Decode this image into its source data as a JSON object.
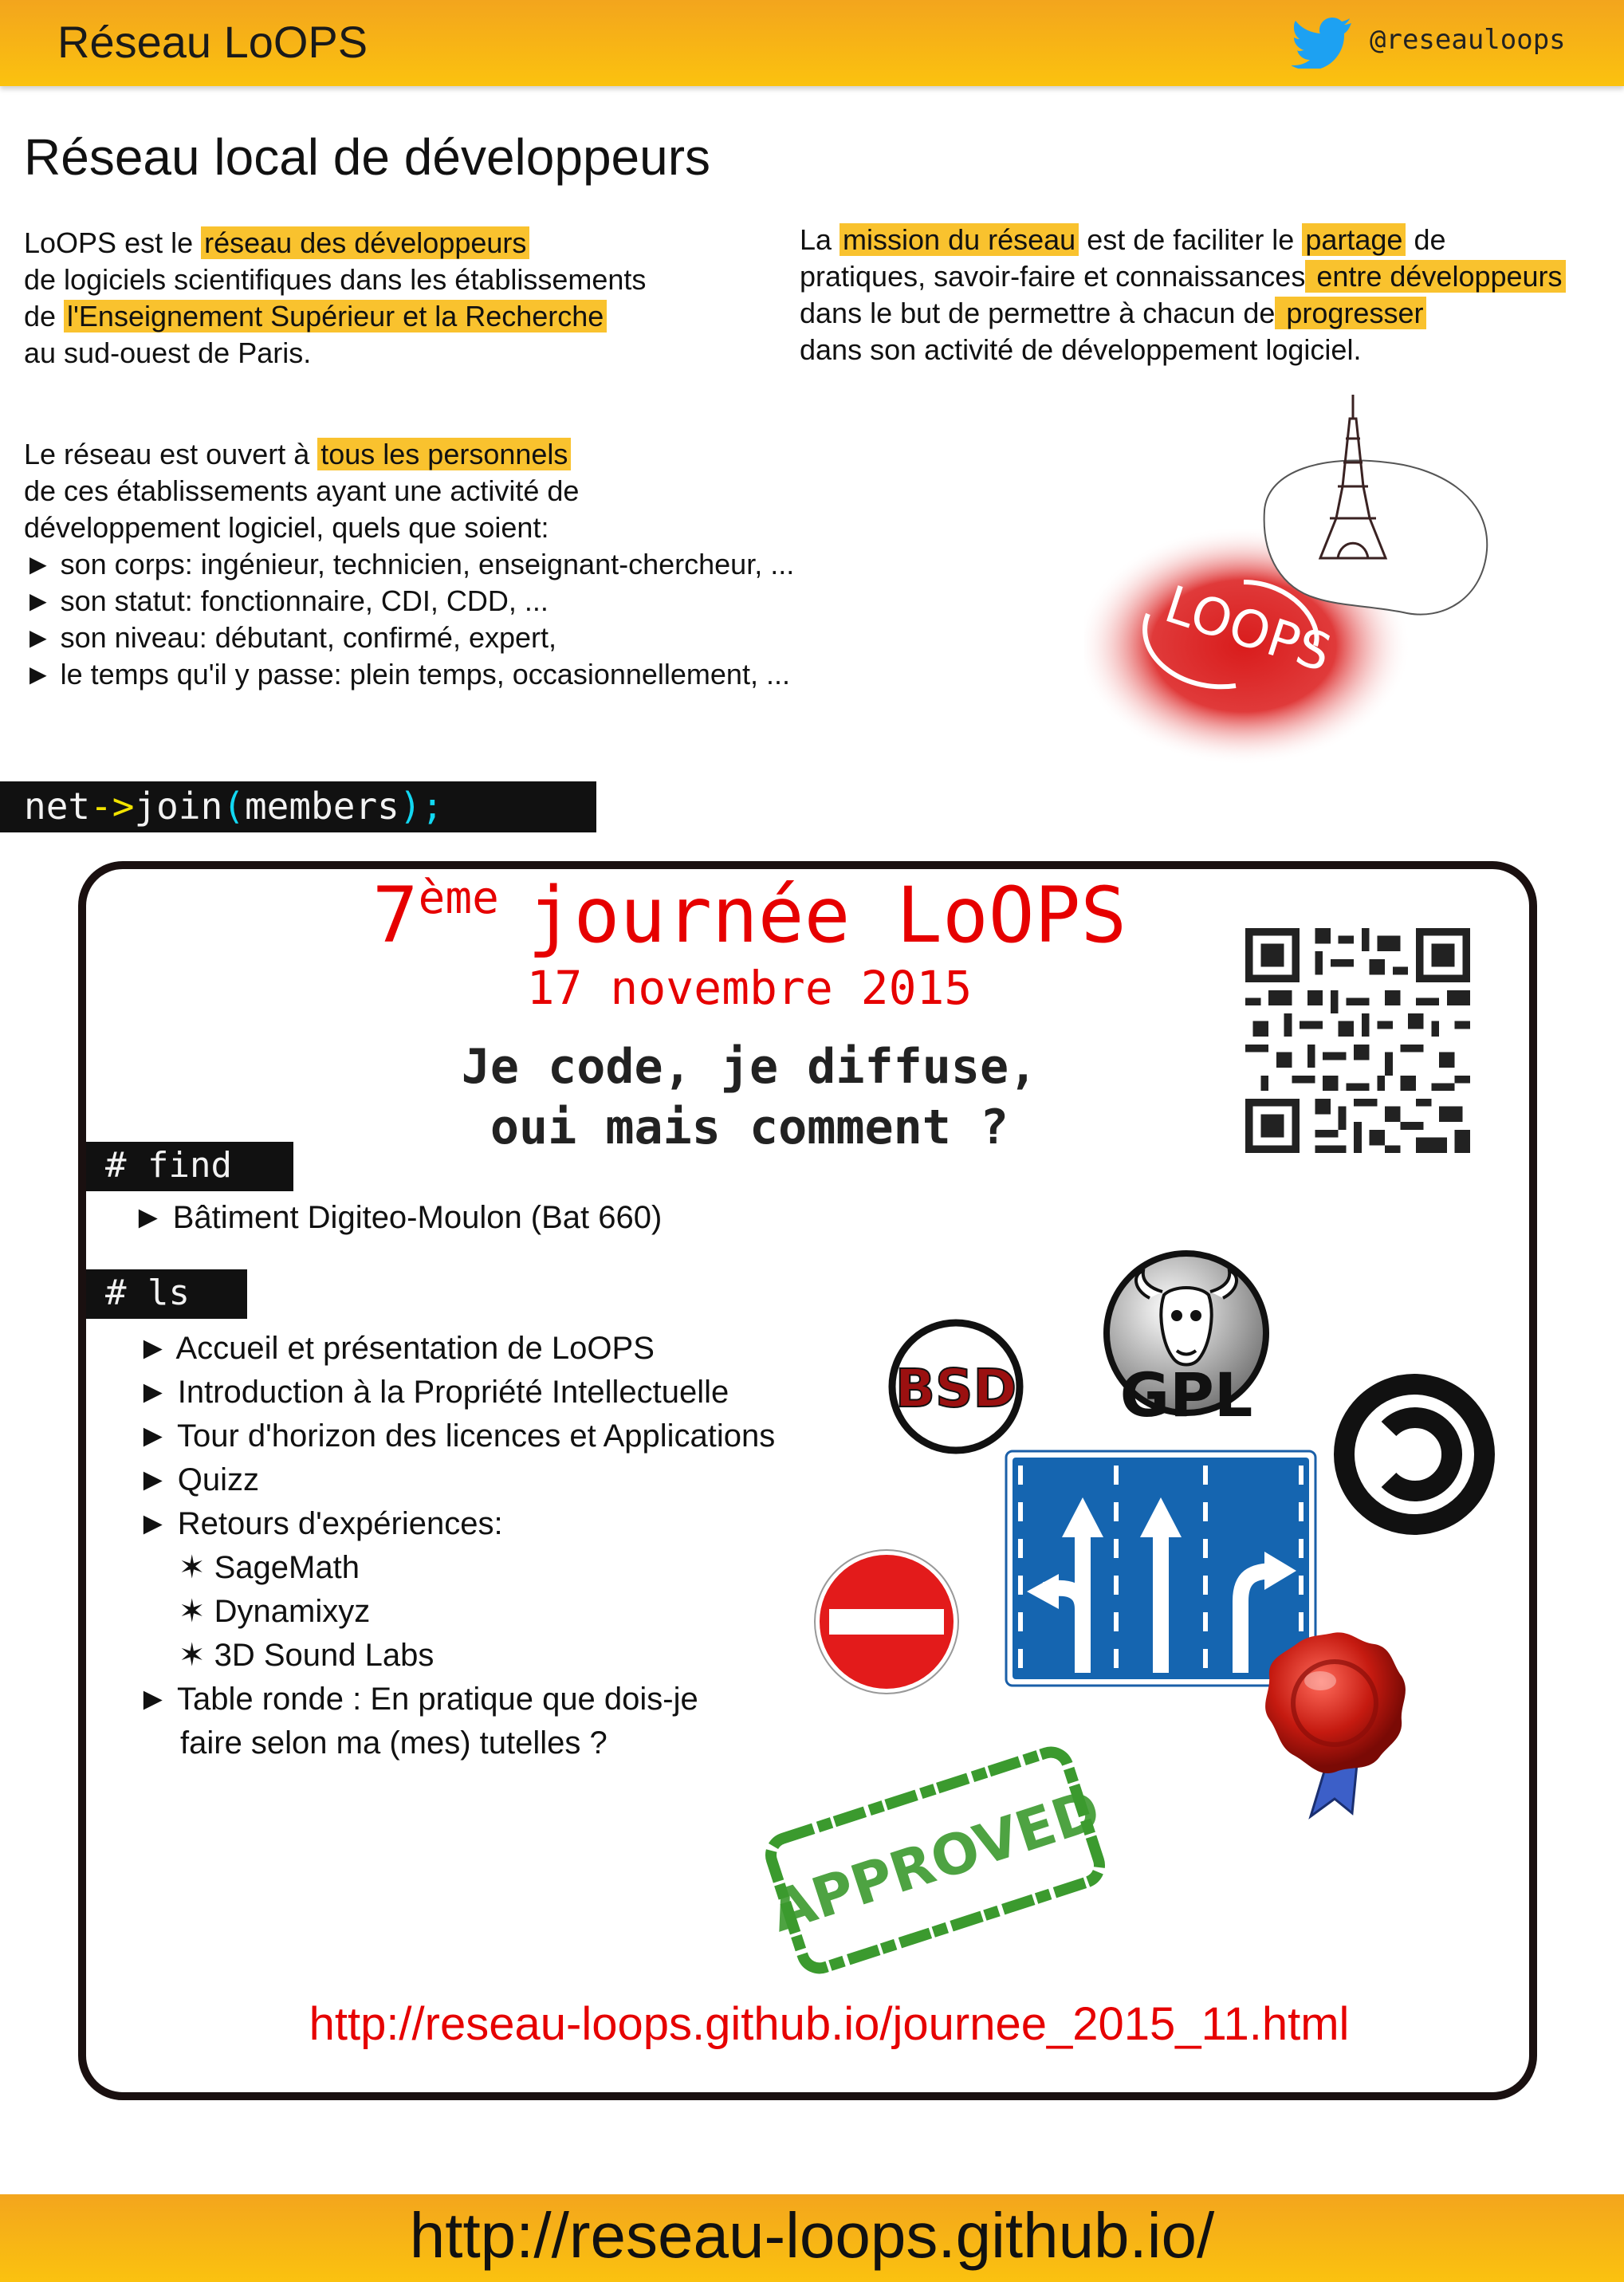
{
  "header": {
    "title": "Réseau LoOPS",
    "twitter_handle": "@reseauloops",
    "twitter_icon": "twitter-bird-icon",
    "background_color": "#f9b716"
  },
  "page_title": "Réseau local de développeurs",
  "intro_left": {
    "p1": "LoOPS est le ",
    "hl1": "réseau des développeurs",
    "p2": "de logiciels scientifiques dans les établissements",
    "p3": "de ",
    "hl2": "l'Enseignement Supérieur et la Recherche",
    "p4": "au sud-ouest de Paris."
  },
  "intro_right": {
    "p1": "La ",
    "hl1": "mission du réseau",
    "p2": " est de faciliter le ",
    "hl2": "partage",
    "p3": " de",
    "p4": "pratiques, savoir-faire et connaissances",
    "hl3": " entre développeurs",
    "p5": "dans le but de permettre à chacun de",
    "hl4": " progresser",
    "p6": "dans son activité de développement logiciel."
  },
  "open_para": {
    "p1": "Le réseau est ouvert à ",
    "hl1": "tous les personnels",
    "p2": "de ces établissements ayant une activité de",
    "p3": "développement logiciel, quels que soient:",
    "bullets": [
      "► son corps: ingénieur, technicien, enseignant-chercheur, ...",
      "► son statut: fonctionnaire, CDI, CDD, ...",
      "► son niveau: débutant, confirmé, expert,",
      "► le temps qu'il y passe: plein temps, occasionnellement, ..."
    ]
  },
  "illustration": {
    "logo_text": "LOOPS",
    "icons": [
      "eiffel-tower-icon",
      "loops-logo-icon"
    ]
  },
  "code_line": {
    "t1": "net",
    "t2": "->",
    "t3": "join",
    "t4": "(",
    "t5": "members",
    "t6": ");"
  },
  "event": {
    "title_num": "7",
    "title_sup": "ème",
    "title_rest": "journée LoOPS",
    "date": "17 novembre 2015",
    "theme_line1": "Je code, je diffuse,",
    "theme_line2": "oui mais comment ?",
    "find_label": "# find",
    "find_item": "► Bâtiment Digiteo-Moulon (Bat 660)",
    "ls_label": "# ls",
    "agenda": [
      "► Accueil et présentation de LoOPS",
      "► Introduction à la Propriété Intellectuelle",
      "► Tour d'horizon des licences et Applications",
      "► Quizz",
      "► Retours d'expériences:"
    ],
    "experiences": [
      "✶ SageMath",
      "✶ Dynamixyz",
      "✶ 3D Sound Labs"
    ],
    "roundtable_line1": "► Table ronde : En pratique que dois-je",
    "roundtable_line2": "faire selon ma (mes) tutelles ?",
    "url": "http://reseau-loops.github.io/journee_2015_11.html",
    "title_color": "#e60000",
    "logos": {
      "bsd": "BSD",
      "gpl": "GPL",
      "approved": "APPROVED"
    },
    "icons": [
      "qr-code-icon",
      "bsd-logo-icon",
      "gnu-gpl-logo-icon",
      "copyleft-icon",
      "road-lanes-sign-icon",
      "no-entry-sign-icon",
      "wax-seal-icon",
      "approved-stamp-icon"
    ]
  },
  "footer": {
    "url": "http://reseau-loops.github.io/"
  },
  "highlight_color": "#f9c22e"
}
